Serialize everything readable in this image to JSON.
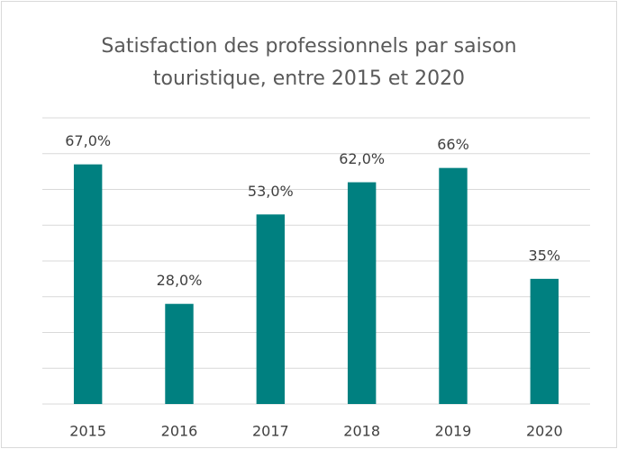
{
  "chart_data": {
    "type": "bar",
    "title": "Satisfaction des professionnels par saison touristique, entre 2015 et 2020",
    "categories": [
      "2015",
      "2016",
      "2017",
      "2018",
      "2019",
      "2020"
    ],
    "values": [
      67,
      28,
      53,
      62,
      66,
      35
    ],
    "value_labels": [
      "67,0%",
      "28,0%",
      "53,0%",
      "62,0%",
      "66%",
      "35%"
    ],
    "color": "#008080",
    "ylim": [
      0,
      80
    ],
    "yticks": [
      0,
      10,
      20,
      30,
      40,
      50,
      60,
      70,
      80
    ],
    "grid": true
  }
}
